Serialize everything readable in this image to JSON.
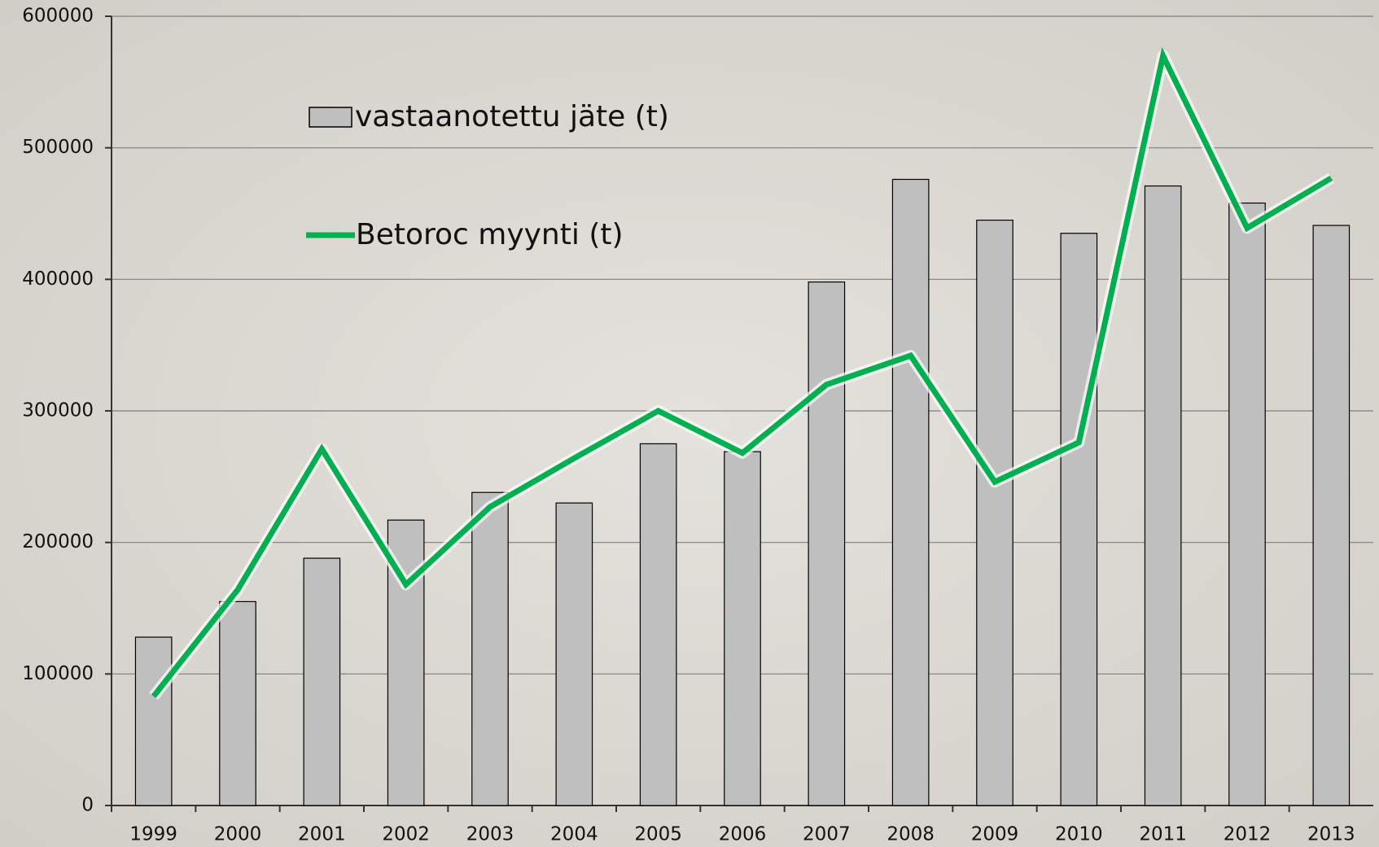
{
  "chart_data": {
    "type": "bar_line",
    "categories": [
      "1999",
      "2000",
      "2001",
      "2002",
      "2003",
      "2004",
      "2005",
      "2006",
      "2007",
      "2008",
      "2009",
      "2010",
      "2011",
      "2012",
      "2013"
    ],
    "series": [
      {
        "name": "vastaanotettu jäte (t)",
        "type": "bar",
        "color": "#bfbfbf",
        "values": [
          128000,
          155000,
          188000,
          217000,
          238000,
          230000,
          275000,
          269000,
          398000,
          476000,
          445000,
          435000,
          471000,
          458000,
          441000
        ]
      },
      {
        "name": "Betoroc myynti (t)",
        "type": "line",
        "color": "#00b050",
        "values": [
          83000,
          164000,
          271000,
          168000,
          227000,
          264000,
          300000,
          268000,
          320000,
          342000,
          246000,
          276000,
          570000,
          439000,
          477000
        ]
      }
    ],
    "ylim": [
      0,
      600000
    ],
    "yticks": [
      0,
      100000,
      200000,
      300000,
      400000,
      500000,
      600000
    ],
    "grid": true
  }
}
